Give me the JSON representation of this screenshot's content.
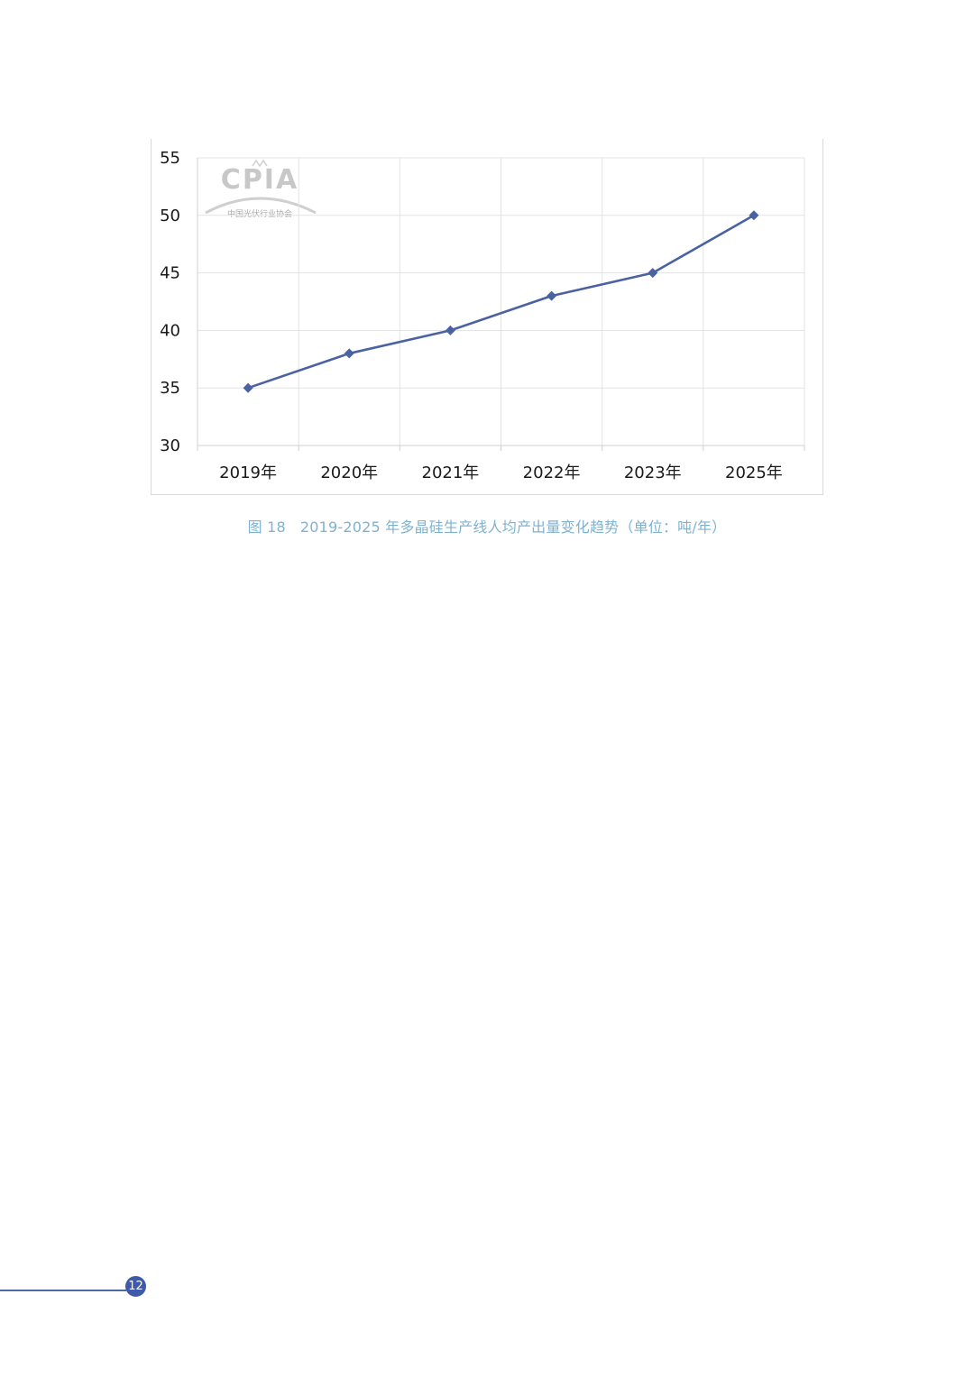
{
  "chart_data": {
    "type": "line",
    "title": "",
    "xlabel": "",
    "ylabel": "",
    "categories": [
      "2019年",
      "2020年",
      "2021年",
      "2022年",
      "2023年",
      "2025年"
    ],
    "series": [
      {
        "values": [
          35,
          38,
          40,
          43,
          45,
          50
        ],
        "color": "#4a62a2",
        "marker": "diamond"
      }
    ],
    "ylim": [
      30,
      55
    ],
    "yticks": [
      30,
      35,
      40,
      45,
      50,
      55
    ],
    "grid": true,
    "legend": "none"
  },
  "caption": {
    "figure_label": "图 18",
    "text": "2019-2025 年多晶硅生产线人均产出量变化趋势（单位：吨/年）"
  },
  "watermark": {
    "text": "CPIA",
    "subtitle": "中国光伏行业协会"
  },
  "footer": {
    "page_number": "12"
  },
  "colors": {
    "line": "#4a62a2",
    "grid": "#e3e3e3",
    "caption": "#7fb2cf",
    "page_badge": "#3f5aa8"
  }
}
